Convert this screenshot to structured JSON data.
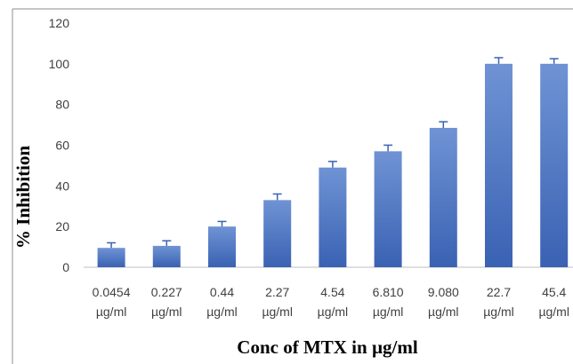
{
  "chart_data": {
    "type": "bar",
    "title": "",
    "xlabel": "Conc of MTX in µg/ml",
    "ylabel": "% Inhibition",
    "ylim": [
      0,
      120
    ],
    "yticks": [
      "0",
      "20",
      "40",
      "60",
      "80",
      "100",
      "120"
    ],
    "grid": false,
    "legend": "none",
    "categories": [
      [
        "0.0454",
        "µg/ml"
      ],
      [
        "0.227",
        "µg/ml"
      ],
      [
        "0.44",
        "µg/ml"
      ],
      [
        "2.27",
        "µg/ml"
      ],
      [
        "4.54",
        "µg/ml"
      ],
      [
        "6.810",
        "µg/ml"
      ],
      [
        "9.080",
        "µg/ml"
      ],
      [
        "22.7",
        "µg/ml"
      ],
      [
        "45.4",
        "µg/ml"
      ]
    ],
    "values": [
      9.5,
      10.5,
      20,
      33,
      49,
      57,
      68.5,
      100,
      100
    ],
    "errors": [
      2.5,
      2.5,
      2.5,
      3,
      3,
      3,
      3,
      3,
      2.5
    ],
    "colors": {
      "bar_top": "#6f93d4",
      "bar_bottom": "#3a62b3",
      "error_bar": "#3a62b3",
      "axis": "#bfbfbf",
      "tick_text": "#404040",
      "label_text": "#000000",
      "border": "#8c8c8c"
    }
  }
}
